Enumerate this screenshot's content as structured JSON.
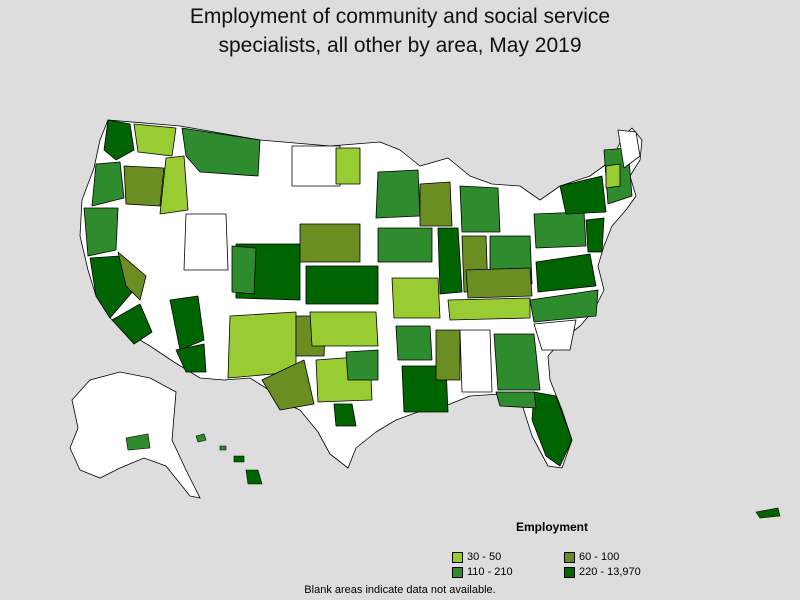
{
  "title_line1": "Employment of community and social service",
  "title_line2": "specialists, all other by area, May 2019",
  "legend": {
    "title": "Employment",
    "items": [
      {
        "label": "30 - 50",
        "color": "#99cc33"
      },
      {
        "label": "60 - 100",
        "color": "#6b8e23"
      },
      {
        "label": "110 - 210",
        "color": "#2e8b2e"
      },
      {
        "label": "220 - 13,970",
        "color": "#006400"
      }
    ]
  },
  "note": "Blank areas indicate data not available.",
  "colors": {
    "background": "#dddddd",
    "no_data": "#ffffff",
    "border": "#000000"
  }
}
